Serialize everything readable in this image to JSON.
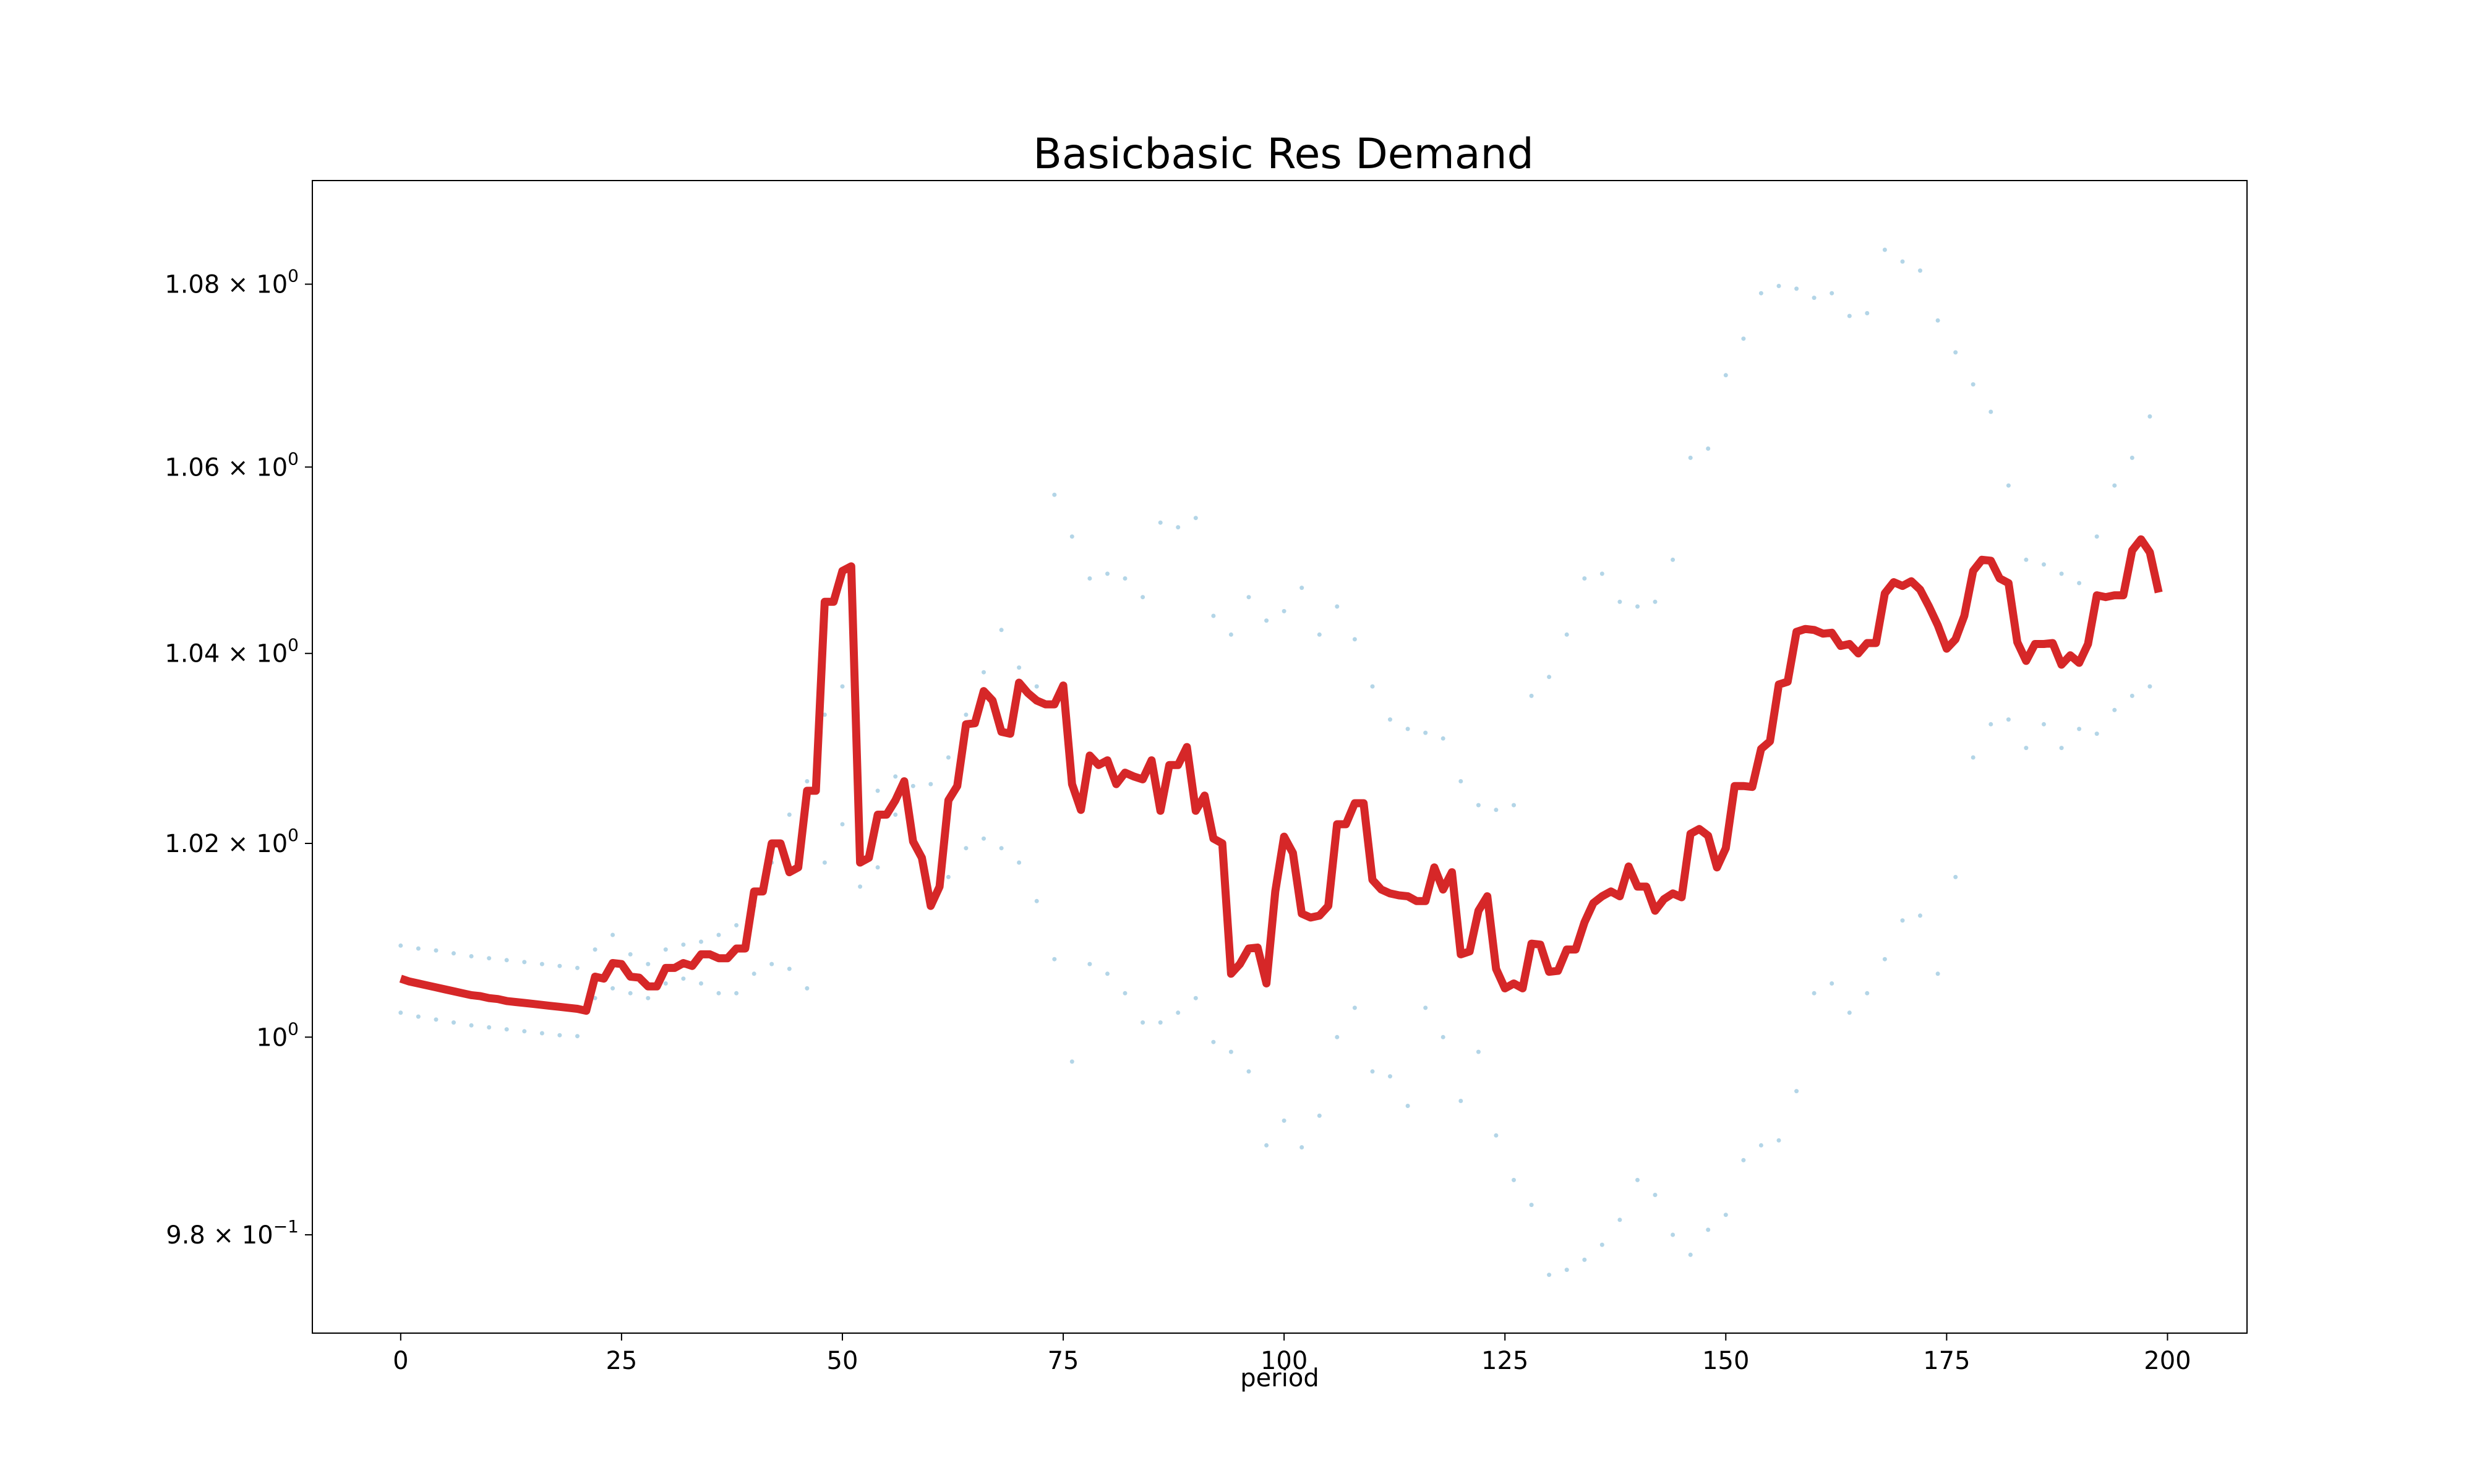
{
  "chart_data": {
    "type": "line",
    "title": "Basicbasic Res Demand",
    "xlabel": "period",
    "ylabel": "",
    "xlim": [
      -10,
      209
    ],
    "ylim": [
      0.9702,
      1.0915
    ],
    "yscale": "log",
    "grid": false,
    "x_ticks": [
      0,
      25,
      50,
      75,
      100,
      125,
      150,
      175,
      200
    ],
    "x_tick_labels": [
      "0",
      "25",
      "50",
      "75",
      "100",
      "125",
      "150",
      "175",
      "200"
    ],
    "y_ticks": [
      0.98,
      1.0,
      1.02,
      1.04,
      1.06,
      1.08
    ],
    "y_tick_labels": [
      {
        "mant": "9.8",
        "exp": "−1"
      },
      {
        "mant": "",
        "exp": "0"
      },
      {
        "mant": "1.02",
        "exp": "0"
      },
      {
        "mant": "1.04",
        "exp": "0"
      },
      {
        "mant": "1.06",
        "exp": "0"
      },
      {
        "mant": "1.08",
        "exp": "0"
      }
    ],
    "colors": {
      "main": "#d62728",
      "band": "#a6cee3"
    },
    "series": [
      {
        "style": "line",
        "x": [
          0,
          1,
          2,
          3,
          4,
          5,
          6,
          7,
          8,
          9,
          10,
          11,
          12,
          13,
          14,
          15,
          16,
          17,
          18,
          19,
          20,
          21,
          22,
          23,
          24,
          25,
          26,
          27,
          28,
          29,
          30,
          31,
          32,
          33,
          34,
          35,
          36,
          37,
          38,
          39,
          40,
          41,
          42,
          43,
          44,
          45,
          46,
          47,
          48,
          49,
          50,
          51,
          52,
          53,
          54,
          55,
          56,
          57,
          58,
          59,
          60,
          61,
          62,
          63,
          64,
          65,
          66,
          67,
          68,
          69,
          70,
          71,
          72,
          73,
          74,
          75,
          76,
          77,
          78,
          79,
          80,
          81,
          82,
          83,
          84,
          85,
          86,
          87,
          88,
          89,
          90,
          91,
          92,
          93,
          94,
          95,
          96,
          97,
          98,
          99,
          100,
          101,
          102,
          103,
          104,
          105,
          106,
          107,
          108,
          109,
          110,
          111,
          112,
          113,
          114,
          115,
          116,
          117,
          118,
          119,
          120,
          121,
          122,
          123,
          124,
          125,
          126,
          127,
          128,
          129,
          130,
          131,
          132,
          133,
          134,
          135,
          136,
          137,
          138,
          139,
          140,
          141,
          142,
          143,
          144,
          145,
          146,
          147,
          148,
          149,
          150,
          151,
          152,
          153,
          154,
          155,
          156,
          157,
          158,
          159,
          160,
          161,
          162,
          163,
          164,
          165,
          166,
          167,
          168,
          169,
          170,
          171,
          172,
          173,
          174,
          175,
          176,
          177,
          178,
          179,
          180,
          181,
          182,
          183,
          184,
          185,
          186,
          187,
          188,
          189,
          190,
          191,
          192,
          193,
          194,
          195,
          196,
          197,
          198,
          199
        ],
        "y": [
          1.006,
          1.0057,
          1.0055,
          1.0053,
          1.0051,
          1.0049,
          1.0047,
          1.0045,
          1.0043,
          1.0042,
          1.004,
          1.0039,
          1.0037,
          1.0036,
          1.0035,
          1.0034,
          1.0033,
          1.0032,
          1.0031,
          1.003,
          1.0029,
          1.0027,
          1.0062,
          1.006,
          1.0076,
          1.0075,
          1.0062,
          1.0061,
          1.0052,
          1.0052,
          1.0071,
          1.0071,
          1.0076,
          1.0073,
          1.0085,
          1.0085,
          1.0081,
          1.0081,
          1.0091,
          1.0091,
          1.015,
          1.015,
          1.02,
          1.02,
          1.017,
          1.0175,
          1.0255,
          1.0255,
          1.0455,
          1.0455,
          1.0488,
          1.0493,
          1.018,
          1.0185,
          1.023,
          1.023,
          1.0245,
          1.0265,
          1.0202,
          1.0185,
          1.0135,
          1.0155,
          1.0245,
          1.026,
          1.0325,
          1.0326,
          1.036,
          1.035,
          1.0317,
          1.0315,
          1.0369,
          1.0358,
          1.035,
          1.0346,
          1.0346,
          1.0366,
          1.0262,
          1.0235,
          1.0292,
          1.0282,
          1.0287,
          1.0262,
          1.0274,
          1.027,
          1.0267,
          1.0287,
          1.0234,
          1.0282,
          1.0282,
          1.0301,
          1.0234,
          1.025,
          1.0205,
          1.02,
          1.0065,
          1.0075,
          1.0091,
          1.0092,
          1.0055,
          1.015,
          1.0207,
          1.019,
          1.0127,
          1.0123,
          1.0125,
          1.0135,
          1.022,
          1.022,
          1.0242,
          1.0242,
          1.0162,
          1.0152,
          1.0148,
          1.0146,
          1.0145,
          1.014,
          1.014,
          1.0175,
          1.0152,
          1.017,
          1.0085,
          1.0088,
          1.013,
          1.0145,
          1.007,
          1.005,
          1.0055,
          1.005,
          1.0096,
          1.0095,
          1.0067,
          1.0068,
          1.009,
          1.009,
          1.0118,
          1.0138,
          1.0145,
          1.015,
          1.0145,
          1.0176,
          1.0155,
          1.0155,
          1.013,
          1.0142,
          1.0148,
          1.0144,
          1.021,
          1.0215,
          1.0208,
          1.0175,
          1.0195,
          1.026,
          1.026,
          1.0259,
          1.0299,
          1.0307,
          1.0367,
          1.037,
          1.0423,
          1.0426,
          1.0425,
          1.0421,
          1.0422,
          1.0408,
          1.041,
          1.04,
          1.0411,
          1.0411,
          1.0464,
          1.0476,
          1.0472,
          1.0477,
          1.0468,
          1.045,
          1.043,
          1.0405,
          1.0415,
          1.044,
          1.0488,
          1.05,
          1.0499,
          1.048,
          1.0475,
          1.0412,
          1.0392,
          1.041,
          1.041,
          1.0411,
          1.0388,
          1.0398,
          1.039,
          1.041,
          1.0462,
          1.046,
          1.0462,
          1.0462,
          1.051,
          1.0522,
          1.0508,
          1.0465
        ]
      },
      {
        "style": "dots",
        "x": [
          0,
          2,
          4,
          6,
          8,
          10,
          12,
          14,
          16,
          18,
          20,
          22,
          24,
          26,
          28,
          30,
          32,
          34,
          36,
          38,
          40,
          42,
          44,
          46,
          48,
          50,
          52,
          54,
          56,
          58,
          60,
          62,
          64,
          66,
          68,
          70,
          72,
          74,
          76,
          78,
          80,
          82,
          84,
          86,
          88,
          90,
          92,
          94,
          96,
          98,
          100,
          102,
          104,
          106,
          108,
          110,
          112,
          114,
          116,
          118,
          120,
          122,
          124,
          126,
          128,
          130,
          132,
          134,
          136,
          138,
          140,
          142,
          144,
          146,
          148,
          150,
          152,
          154,
          156,
          158,
          160,
          162,
          164,
          166,
          168,
          170,
          172,
          174,
          176,
          178,
          180,
          182,
          184,
          186,
          188,
          190,
          192,
          194,
          196,
          198
        ],
        "y": [
          1.0094,
          1.0091,
          1.0089,
          1.0086,
          1.0083,
          1.0081,
          1.0079,
          1.0077,
          1.0075,
          1.0073,
          1.0071,
          1.009,
          1.0105,
          1.0085,
          1.0075,
          1.009,
          1.0095,
          1.0098,
          1.0105,
          1.0115,
          1.0135,
          1.018,
          1.023,
          1.0265,
          1.0335,
          1.0365,
          1.0245,
          1.0255,
          1.027,
          1.026,
          1.0262,
          1.029,
          1.0335,
          1.038,
          1.0425,
          1.0385,
          1.0365,
          1.057,
          1.0525,
          1.048,
          1.0485,
          1.048,
          1.046,
          1.054,
          1.0535,
          1.0545,
          1.044,
          1.042,
          1.046,
          1.0435,
          1.0445,
          1.047,
          1.042,
          1.045,
          1.0415,
          1.0365,
          1.033,
          1.032,
          1.0316,
          1.031,
          1.0265,
          1.024,
          1.0235,
          1.024,
          1.0355,
          1.0375,
          1.042,
          1.048,
          1.0485,
          1.0455,
          1.045,
          1.0455,
          1.05,
          1.061,
          1.062,
          1.07,
          1.074,
          1.079,
          1.0798,
          1.0795,
          1.0785,
          1.079,
          1.0765,
          1.0768,
          1.0838,
          1.0825,
          1.0815,
          1.076,
          1.0725,
          1.069,
          1.066,
          1.058,
          1.05,
          1.0495,
          1.0485,
          1.0475,
          1.0525,
          1.058,
          1.061,
          1.0655
        ]
      },
      {
        "style": "dots",
        "x": [
          0,
          2,
          4,
          6,
          8,
          10,
          12,
          14,
          16,
          18,
          20,
          22,
          24,
          26,
          28,
          30,
          32,
          34,
          36,
          38,
          40,
          42,
          44,
          46,
          48,
          50,
          52,
          54,
          56,
          58,
          60,
          62,
          64,
          66,
          68,
          70,
          72,
          74,
          76,
          78,
          80,
          82,
          84,
          86,
          88,
          90,
          92,
          94,
          96,
          98,
          100,
          102,
          104,
          106,
          108,
          110,
          112,
          114,
          116,
          118,
          120,
          122,
          124,
          126,
          128,
          130,
          132,
          134,
          136,
          138,
          140,
          142,
          144,
          146,
          148,
          150,
          152,
          154,
          156,
          158,
          160,
          162,
          164,
          166,
          168,
          170,
          172,
          174,
          176,
          178,
          180,
          182,
          184,
          186,
          188,
          190,
          192,
          194,
          196,
          198
        ],
        "y": [
          1.0025,
          1.0021,
          1.0018,
          1.0015,
          1.0012,
          1.001,
          1.0008,
          1.0006,
          1.0004,
          1.0002,
          1.0001,
          1.004,
          1.005,
          1.0045,
          1.004,
          1.0055,
          1.006,
          1.0055,
          1.0045,
          1.0045,
          1.0065,
          1.0075,
          1.007,
          1.005,
          1.018,
          1.022,
          1.0155,
          1.0175,
          1.023,
          1.02,
          1.0135,
          1.0165,
          1.0195,
          1.0205,
          1.0195,
          1.018,
          1.014,
          1.008,
          0.9975,
          1.0075,
          1.0065,
          1.0045,
          1.0015,
          1.0015,
          1.0025,
          1.004,
          0.9995,
          0.9985,
          0.9965,
          0.989,
          0.9915,
          0.9888,
          0.992,
          1.0,
          1.003,
          0.9965,
          0.996,
          0.993,
          1.003,
          1.0,
          0.9935,
          0.9985,
          0.99,
          0.9855,
          0.983,
          0.976,
          0.9765,
          0.9775,
          0.979,
          0.9815,
          0.9855,
          0.984,
          0.98,
          0.978,
          0.9805,
          0.982,
          0.9875,
          0.989,
          0.9895,
          0.9945,
          1.0045,
          1.0055,
          1.0025,
          1.0045,
          1.008,
          1.012,
          1.0125,
          1.0065,
          1.0165,
          1.029,
          1.0325,
          1.033,
          1.03,
          1.0325,
          1.03,
          1.032,
          1.0315,
          1.034,
          1.0355,
          1.0365
        ]
      }
    ]
  }
}
